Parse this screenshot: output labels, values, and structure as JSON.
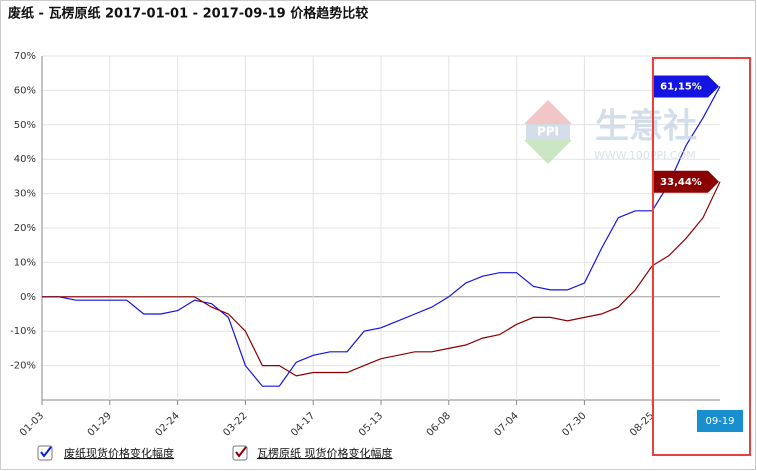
{
  "chart_data": {
    "type": "line",
    "title": "废纸 - 瓦楞原纸 2017-01-01 - 2017-09-19 价格趋势比较",
    "watermark": [
      "PPI",
      "生意社",
      "WWW.100PPI.COM"
    ],
    "categories": [
      "01-03",
      null,
      null,
      null,
      "01-29",
      null,
      null,
      null,
      "02-24",
      null,
      null,
      null,
      "03-22",
      null,
      null,
      null,
      "04-17",
      null,
      null,
      null,
      "05-13",
      null,
      null,
      null,
      "06-08",
      null,
      null,
      null,
      "07-04",
      null,
      null,
      null,
      "07-30",
      null,
      null,
      null,
      "08-25",
      null,
      null,
      null,
      "09-19"
    ],
    "series": [
      {
        "name": "废纸现货价格变化幅度",
        "color": "#1414e0",
        "values": [
          0,
          0,
          -1,
          -1,
          -1,
          -1,
          -5,
          -5,
          -4,
          -1,
          -2,
          -6,
          -20,
          -26,
          -26,
          -19,
          -17,
          -16,
          -16,
          -10,
          -9,
          -7,
          -5,
          -3,
          0,
          4,
          6,
          7,
          7,
          3,
          2,
          2,
          4,
          14,
          23,
          25,
          25,
          33,
          44,
          52,
          61.15
        ],
        "value_labels": [
          null,
          null,
          null,
          null,
          null,
          null,
          null,
          null,
          null,
          null,
          null,
          null,
          null,
          null,
          null,
          null,
          null,
          null,
          null,
          null,
          null,
          null,
          null,
          null,
          null,
          null,
          null,
          null,
          null,
          null,
          null,
          null,
          null,
          null,
          null,
          null,
          null,
          null,
          null,
          null,
          "61,15%"
        ]
      },
      {
        "name": "瓦楞原纸 现货价格变化幅度",
        "color": "#8b0000",
        "values": [
          0,
          0,
          0,
          0,
          0,
          0,
          0,
          0,
          0,
          0,
          -3,
          -5,
          -10,
          -20,
          -20,
          -23,
          -22,
          -22,
          -22,
          -20,
          -18,
          -17,
          -16,
          -16,
          -15,
          -14,
          -12,
          -11,
          -8,
          -6,
          -6,
          -7,
          -6,
          -5,
          -3,
          2,
          9,
          12,
          17,
          23,
          33.44
        ],
        "value_labels": [
          null,
          null,
          null,
          null,
          null,
          null,
          null,
          null,
          null,
          null,
          null,
          null,
          null,
          null,
          null,
          null,
          null,
          null,
          null,
          null,
          null,
          null,
          null,
          null,
          null,
          null,
          null,
          null,
          null,
          null,
          null,
          null,
          null,
          null,
          null,
          null,
          null,
          null,
          null,
          null,
          "33,44%"
        ]
      }
    ],
    "ylim": [
      -30,
      70
    ],
    "yticks": [
      {
        "value": -20,
        "label": "-20%"
      },
      {
        "value": -10,
        "label": "-10%"
      },
      {
        "value": 0,
        "label": "0%"
      },
      {
        "value": 10,
        "label": "10%"
      },
      {
        "value": 20,
        "label": "20%"
      },
      {
        "value": 30,
        "label": "30%"
      },
      {
        "value": 40,
        "label": "40%"
      },
      {
        "value": 50,
        "label": "50%"
      },
      {
        "value": 60,
        "label": "60%"
      },
      {
        "value": 70,
        "label": "70%"
      }
    ],
    "grid": true
  }
}
